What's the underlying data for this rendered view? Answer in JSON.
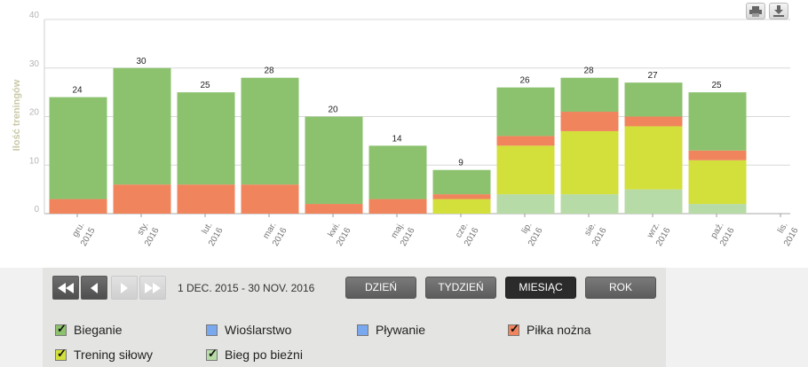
{
  "chart_data": {
    "type": "bar",
    "stacked": true,
    "ylabel": "Ilość treningów",
    "ylim": [
      0,
      40
    ],
    "yticks": [
      0,
      10,
      20,
      30,
      40
    ],
    "grid": true,
    "categories": [
      [
        "gru.",
        "2015"
      ],
      [
        "sty.",
        "2016"
      ],
      [
        "lut.",
        "2016"
      ],
      [
        "mar.",
        "2016"
      ],
      [
        "kwi.",
        "2016"
      ],
      [
        "maj.",
        "2016"
      ],
      [
        "cze.",
        "2016"
      ],
      [
        "lip.",
        "2016"
      ],
      [
        "sie.",
        "2016"
      ],
      [
        "wrz.",
        "2016"
      ],
      [
        "paź.",
        "2016"
      ],
      [
        "lis.",
        "2016"
      ]
    ],
    "totals": [
      24,
      30,
      25,
      28,
      20,
      14,
      9,
      26,
      28,
      27,
      25,
      null
    ],
    "series": [
      {
        "name": "Bieg po bieżni",
        "color": "#b7dba6",
        "values": [
          0,
          0,
          0,
          0,
          0,
          0,
          0,
          4,
          4,
          5,
          2,
          0
        ]
      },
      {
        "name": "Trening siłowy",
        "color": "#d3df3b",
        "values": [
          0,
          0,
          0,
          0,
          0,
          0,
          3,
          10,
          13,
          13,
          9,
          0
        ]
      },
      {
        "name": "Piłka nożna",
        "color": "#f0845c",
        "values": [
          3,
          6,
          6,
          6,
          2,
          3,
          1,
          2,
          4,
          2,
          2,
          0
        ]
      },
      {
        "name": "Bieganie",
        "color": "#8cc26e",
        "values": [
          21,
          24,
          19,
          22,
          18,
          11,
          5,
          10,
          7,
          7,
          12,
          0
        ]
      }
    ]
  },
  "controls": {
    "date_range": "1 DEC. 2015   -   30 NOV. 2016",
    "buttons": {
      "day": "DZIEŃ",
      "week": "TYDZIEŃ",
      "month": "MIESIĄC",
      "year": "ROK"
    },
    "active_period": "month"
  },
  "legend": [
    {
      "label": "Bieganie",
      "color": "#8cc26e",
      "checked": true
    },
    {
      "label": "Wioślarstwo",
      "color": "#7aa8ee",
      "checked": false
    },
    {
      "label": "Pływanie",
      "color": "#7aa8ee",
      "checked": false
    },
    {
      "label": "Piłka nożna",
      "color": "#f0845c",
      "checked": true
    },
    {
      "label": "Trening siłowy",
      "color": "#d3df3b",
      "checked": true
    },
    {
      "label": "Bieg po bieżni",
      "color": "#b7dba6",
      "checked": true
    }
  ],
  "icons": {
    "print": "print-icon",
    "download": "download-icon",
    "first": "first-page-icon",
    "prev": "prev-icon",
    "next": "next-icon",
    "last": "last-page-icon"
  }
}
